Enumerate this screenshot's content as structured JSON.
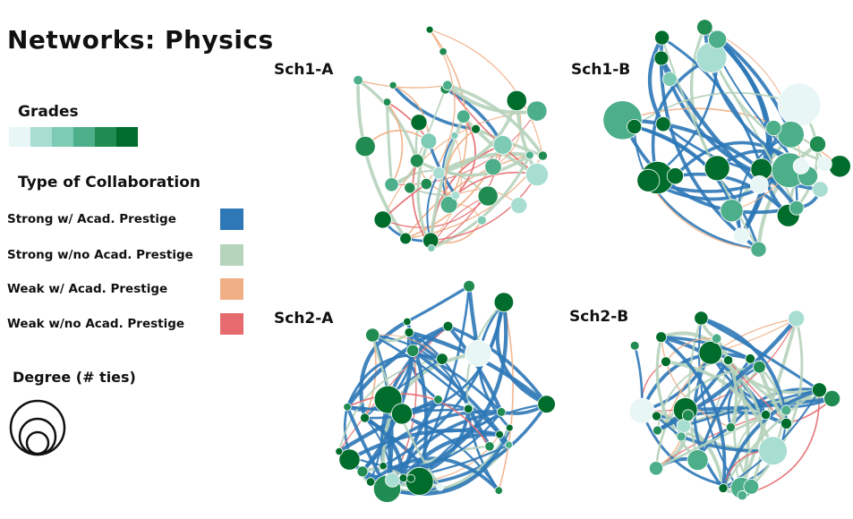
{
  "title": "Networks: Physics",
  "legend": {
    "grades_title": "Grades",
    "grade_colors": [
      "#e8f6f6",
      "#a8ddd2",
      "#7ecbb5",
      "#4dae8a",
      "#218c51",
      "#006d2c"
    ],
    "collab_title": "Type of Collaboration",
    "collab_types": [
      {
        "label": "Strong w/ Acad. Prestige",
        "color": "#2e78b7"
      },
      {
        "label": "Strong w/no Acad. Prestige",
        "color": "#b6d3bb"
      },
      {
        "label": "Weak w/ Acad. Prestige",
        "color": "#f0ae84"
      },
      {
        "label": "Weak w/no Acad. Prestige",
        "color": "#e56b6f"
      }
    ],
    "degree_title": "Degree (# ties)"
  },
  "networks": [
    {
      "label": "Sch1-A"
    },
    {
      "label": "Sch1-B"
    },
    {
      "label": "Sch2-A"
    },
    {
      "label": "Sch2-B"
    }
  ]
}
